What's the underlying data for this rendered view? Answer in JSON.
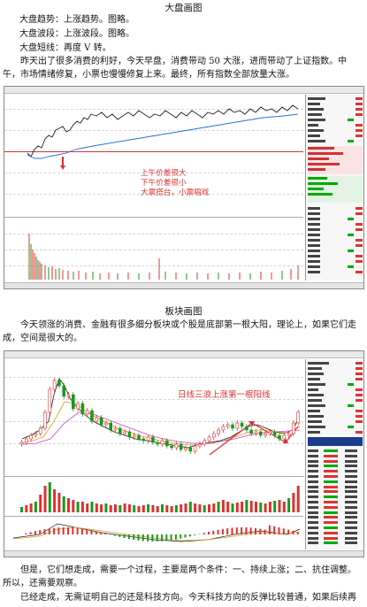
{
  "section1": {
    "heading": "大盘画图",
    "lines": [
      "大盘趋势：上涨趋势。图略。",
      "大盘波段：上涨波段。图略。",
      "大盘短线：再度 V 转。"
    ],
    "paragraph": "昨天出了很多消费的利好，今天早盘，消费带动 50 大涨，进而带动了上证指数。中午，市场情绪修复，小票也慢慢修复上来。最终，所有指数全部放量大涨。"
  },
  "chart1": {
    "annotation": [
      "上午价差很大",
      "下午价差很小",
      "大票搭台，小票唱戏"
    ],
    "colors": {
      "index_line": "#222222",
      "avg_line": "#2a6fd6",
      "up": "#e03030",
      "down": "#1a9a1a",
      "annotation": "#e03030"
    }
  },
  "section2": {
    "heading": "板块画图",
    "paragraph": "今天领涨的消费、金融有很多细分板块或个股是底部第一根大阳，理论上，如果它们走成，空间是很大的。"
  },
  "chart2": {
    "annotation": "日线三浪上涨第一根阳线",
    "colors": {
      "up": "#e03030",
      "down": "#1a9a1a",
      "ma5": "#222222",
      "ma10": "#d6a21a",
      "ma20": "#d43bd4",
      "annotation": "#e03030"
    }
  },
  "section3": {
    "paragraph1": "但是，它们想走成，需要一个过程，主要是两个条件：一、持续上涨；二、抗住调整。所以，还需要观察。",
    "paragraph2": "已经走成，无需证明自己的还是科技方向。今天科技方向的反弹比较普通，如果后续再"
  }
}
